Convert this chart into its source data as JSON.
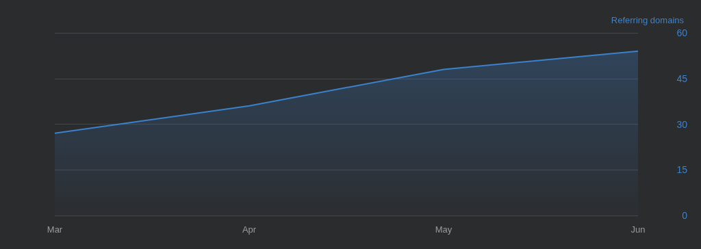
{
  "chart_data": {
    "type": "area",
    "ylabel": "Referring domains",
    "categories": [
      "Mar",
      "Apr",
      "May",
      "Jun"
    ],
    "series": [
      {
        "color": "#3b82cc",
        "values": [
          27,
          36,
          48,
          54
        ]
      }
    ],
    "ylim": [
      0,
      60
    ],
    "yticks": [
      0,
      15,
      30,
      45,
      60
    ],
    "grid": "y",
    "marker": "none"
  }
}
